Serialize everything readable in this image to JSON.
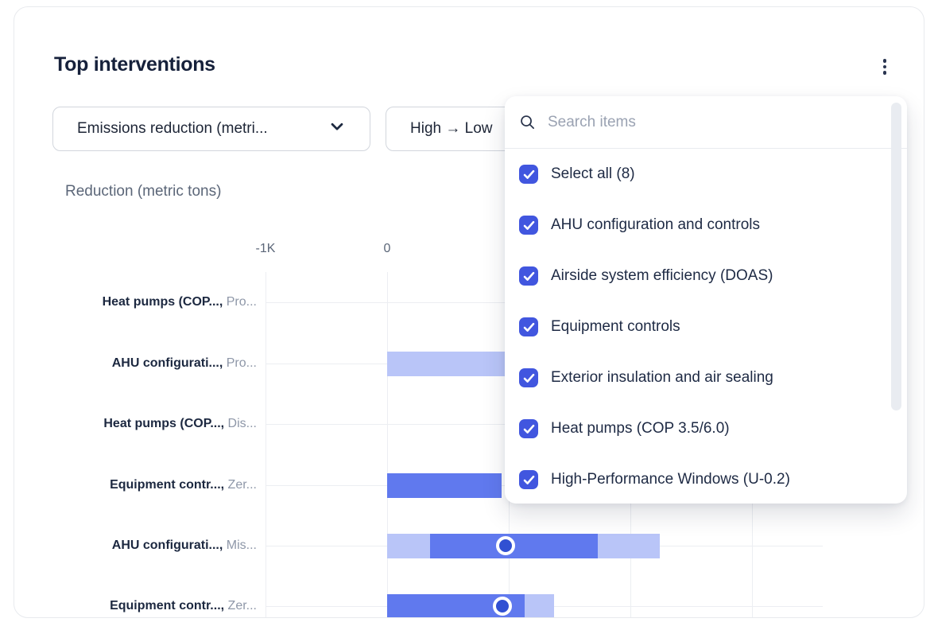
{
  "card": {
    "title": "Top interventions"
  },
  "filters": {
    "metric_select": {
      "value": "Emissions reduction (metri..."
    },
    "sort_select": {
      "value": "High → Low"
    }
  },
  "dropdown": {
    "search_placeholder": "Search items",
    "items": [
      {
        "label": "Select all (8)",
        "checked": true
      },
      {
        "label": "AHU configuration and controls",
        "checked": true
      },
      {
        "label": "Airside system efficiency (DOAS)",
        "checked": true
      },
      {
        "label": "Equipment controls",
        "checked": true
      },
      {
        "label": "Exterior insulation and air sealing",
        "checked": true
      },
      {
        "label": "Heat pumps (COP 3.5/6.0)",
        "checked": true
      },
      {
        "label": "High-Performance Windows (U-0.2)",
        "checked": true
      }
    ]
  },
  "chart_data": {
    "type": "bar",
    "subtype": "horizontal-range-bars-with-median-markers",
    "title": "Reduction (metric tons)",
    "xlabel": "Reduction (metric tons)",
    "x_ticks": [
      {
        "label": "-1K",
        "value": -1000
      },
      {
        "label": "0",
        "value": 0
      }
    ],
    "gridline_values": [
      -1000,
      0,
      1000,
      2000,
      3000
    ],
    "xlim_visible": [
      -1000,
      3580
    ],
    "colors": {
      "bar_solid": "#6079ee",
      "bar_light": "#b9c5f8",
      "marker": "#3150d2"
    },
    "rows": [
      {
        "label_primary": "Heat pumps (COP...,",
        "label_secondary": "Pro...",
        "bar": null
      },
      {
        "label_primary": "AHU configurati...,",
        "label_secondary": "Pro...",
        "bar": {
          "type": "light",
          "start": 0,
          "end": 2550,
          "end_hidden_behind_menu": true
        }
      },
      {
        "label_primary": "Heat pumps (COP...,",
        "label_secondary": "Dis...",
        "bar": null
      },
      {
        "label_primary": "Equipment contr...,",
        "label_secondary": "Zer...",
        "bar": {
          "type": "solid",
          "start": 0,
          "end": 940,
          "end_hidden_behind_menu": true
        }
      },
      {
        "label_primary": "AHU configurati...,",
        "label_secondary": "Mis...",
        "bar": {
          "range": [
            0,
            2240
          ],
          "core": [
            350,
            1730
          ],
          "marker": 975
        }
      },
      {
        "label_primary": "Equipment contr...,",
        "label_secondary": "Zer...",
        "bar": {
          "range": [
            0,
            1370
          ],
          "core": [
            0,
            1130
          ],
          "marker": 950
        }
      }
    ]
  }
}
